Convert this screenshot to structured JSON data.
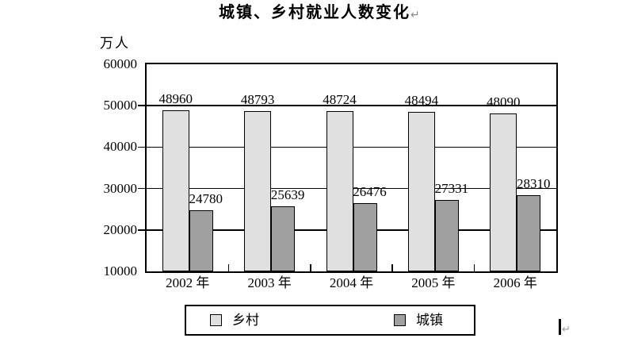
{
  "page": {
    "title": "城镇、乡村就业人数变化",
    "paragraph_mark": "↵"
  },
  "chart_data": {
    "type": "bar",
    "title": "城镇、乡村就业人数变化",
    "ylabel": "万人",
    "xlabel": "",
    "categories": [
      "2002 年",
      "2003 年",
      "2004 年",
      "2005 年",
      "2006 年"
    ],
    "series": [
      {
        "name": "乡村",
        "color": "#e0e0e0",
        "values": [
          48960,
          48793,
          48724,
          48494,
          48090
        ]
      },
      {
        "name": "城镇",
        "color": "#a0a0a0",
        "values": [
          24780,
          25639,
          26476,
          27331,
          28310
        ]
      }
    ],
    "ylim": [
      10000,
      60000
    ],
    "yticks": [
      10000,
      20000,
      30000,
      40000,
      50000,
      60000
    ],
    "grid": true,
    "bar_value_labels": true,
    "legend_position": "bottom",
    "axis_color": "#000000",
    "background_color": "#ffffff"
  }
}
